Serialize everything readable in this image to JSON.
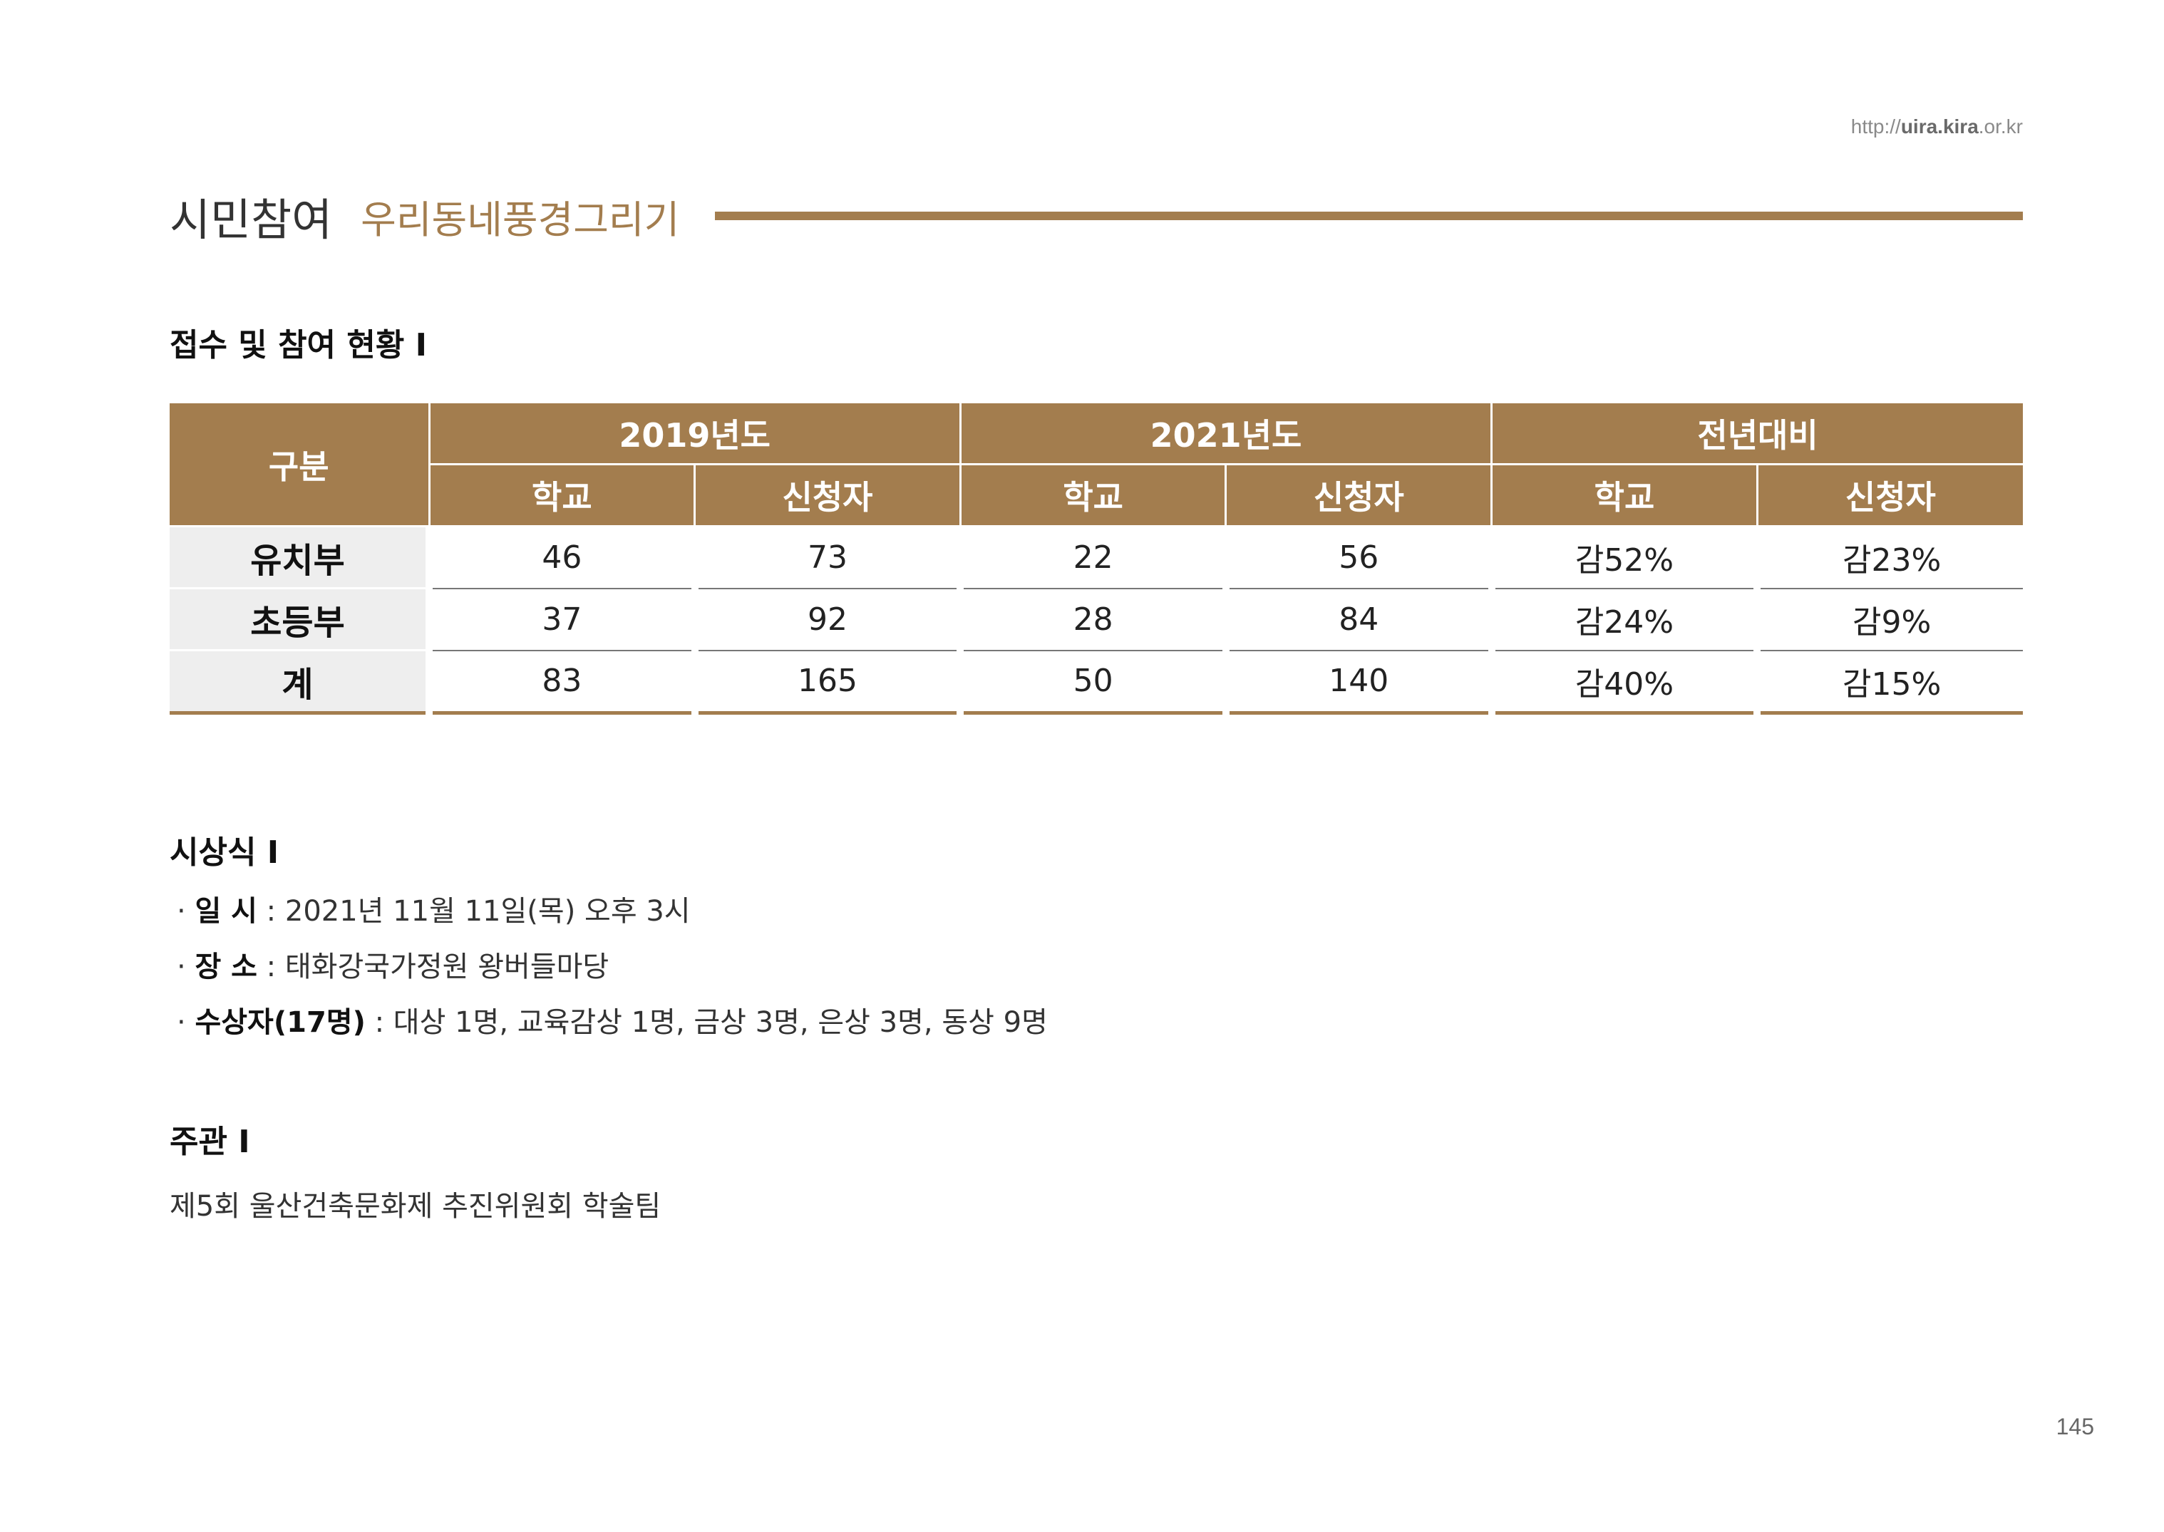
{
  "header": {
    "url_prefix": "http://",
    "url_bold": "uira.kira",
    "url_suffix": ".or.kr",
    "section": "시민참여",
    "subsection": "우리동네풍경그리기"
  },
  "reception": {
    "heading": "접수 및 참여 현황 I",
    "table": {
      "corner": "구분",
      "groups": [
        "2019년도",
        "2021년도",
        "전년대비"
      ],
      "subheads": [
        "학교",
        "신청자",
        "학교",
        "신청자",
        "학교",
        "신청자"
      ],
      "rows": [
        {
          "label": "유치부",
          "cells": [
            "46",
            "73",
            "22",
            "56",
            "감52%",
            "감23%"
          ]
        },
        {
          "label": "초등부",
          "cells": [
            "37",
            "92",
            "28",
            "84",
            "감24%",
            "감9%"
          ]
        },
        {
          "label": "계",
          "cells": [
            "83",
            "165",
            "50",
            "140",
            "감40%",
            "감15%"
          ]
        }
      ]
    }
  },
  "ceremony": {
    "heading": "시상식 I",
    "items": [
      {
        "bullet": "·",
        "label": "일 시",
        "sep": " : ",
        "value": "2021년 11월 11일(목) 오후 3시"
      },
      {
        "bullet": "·",
        "label": "장 소",
        "sep": " : ",
        "value": "태화강국가정원 왕버들마당"
      },
      {
        "bullet": "·",
        "label": "수상자(17명)",
        "sep": " : ",
        "value": "대상 1명, 교육감상 1명, 금상 3명, 은상 3명, 동상 9명"
      }
    ]
  },
  "organizer": {
    "heading": "주관 I",
    "text": "제5회 울산건축문화제 추진위원회 학술팀"
  },
  "page_number": "145"
}
